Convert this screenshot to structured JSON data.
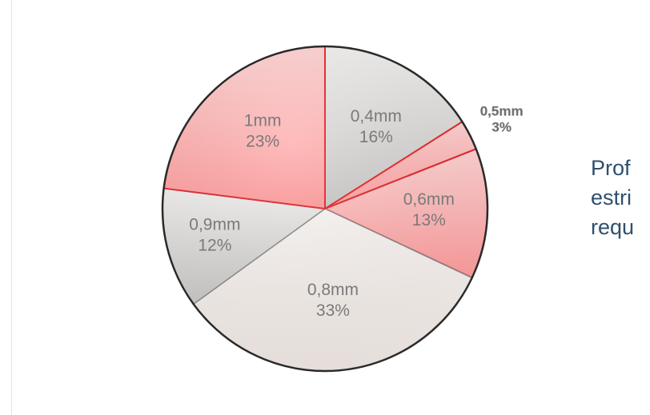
{
  "side_text": {
    "lines": [
      "Prof",
      "estri",
      "requ"
    ]
  },
  "colors": {
    "red_border": "#e3262b",
    "gray_border": "#8c8c8c",
    "label": "#7a7a7a",
    "side_text": "#2f4f6f"
  },
  "chart_data": {
    "type": "pie",
    "title": "",
    "slices": [
      {
        "label": "0,4mm",
        "value": 16,
        "percent_label": "16%",
        "style": "gray"
      },
      {
        "label": "0,5mm",
        "value": 3,
        "percent_label": "3%",
        "style": "red"
      },
      {
        "label": "0,6mm",
        "value": 13,
        "percent_label": "13%",
        "style": "red"
      },
      {
        "label": "0,8mm",
        "value": 33,
        "percent_label": "33%",
        "style": "light"
      },
      {
        "label": "0,9mm",
        "value": 12,
        "percent_label": "12%",
        "style": "gray"
      },
      {
        "label": "1mm",
        "value": 23,
        "percent_label": "23%",
        "style": "red"
      }
    ],
    "start_angle_deg": 0,
    "direction": "clockwise",
    "legend": "none",
    "data_labels": "inside, except the 3% slice which is labelled outside"
  }
}
